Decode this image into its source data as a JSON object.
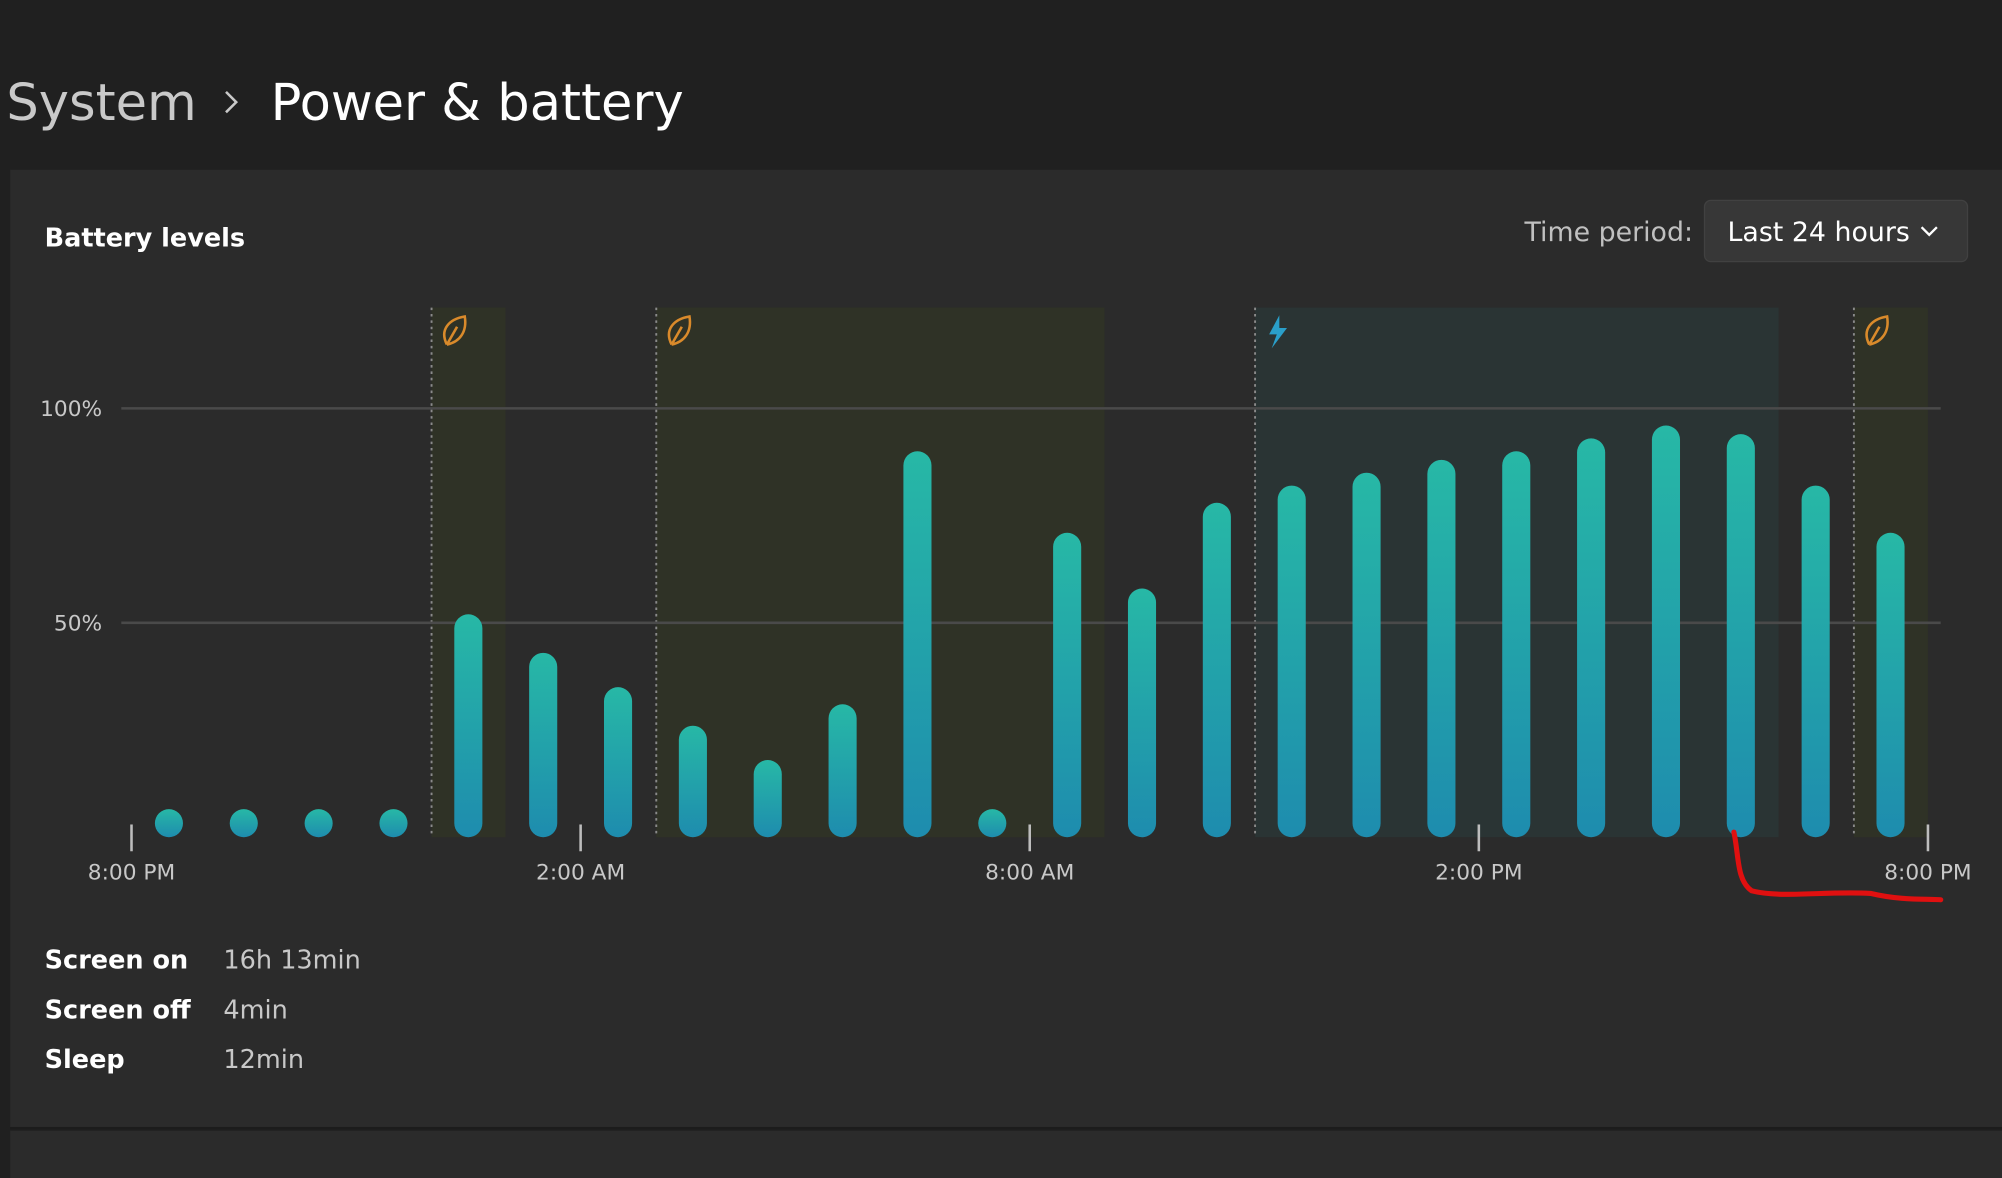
{
  "breadcrumb": {
    "parent": "System",
    "current": "Power & battery"
  },
  "time_period": {
    "label": "Time period:",
    "selected": "Last 24 hours"
  },
  "chart_data": {
    "type": "bar",
    "title": "Battery levels",
    "x": [
      0.5,
      1.5,
      2.5,
      3.5,
      4.5,
      5.5,
      6.5,
      7.5,
      8.5,
      9.5,
      10.5,
      11.5,
      12.5,
      13.5,
      14.5,
      15.5,
      16.5,
      17.5,
      18.5,
      19.5,
      20.5,
      21.5,
      22.5,
      23.5
    ],
    "values": [
      0,
      0,
      0,
      0,
      52,
      43,
      35,
      26,
      18,
      31,
      90,
      0,
      71,
      58,
      78,
      82,
      85,
      88,
      90,
      93,
      96,
      94,
      82,
      71
    ],
    "xlim": [
      0,
      24
    ],
    "xticks": [
      {
        "value": 0,
        "label": "8:00 PM"
      },
      {
        "value": 6,
        "label": "2:00 AM"
      },
      {
        "value": 12,
        "label": "8:00 AM"
      },
      {
        "value": 18,
        "label": "2:00 PM"
      },
      {
        "value": 24,
        "label": "8:00 PM"
      }
    ],
    "ylim": [
      0,
      100
    ],
    "yticks": [
      {
        "value": 50,
        "label": "50%"
      },
      {
        "value": 100,
        "label": "100%"
      }
    ],
    "grid": true
  },
  "stats": [
    {
      "label": "Screen on",
      "value": "16h 13min"
    },
    {
      "label": "Screen off",
      "value": "4min"
    },
    {
      "label": "Sleep",
      "value": "12min"
    }
  ]
}
